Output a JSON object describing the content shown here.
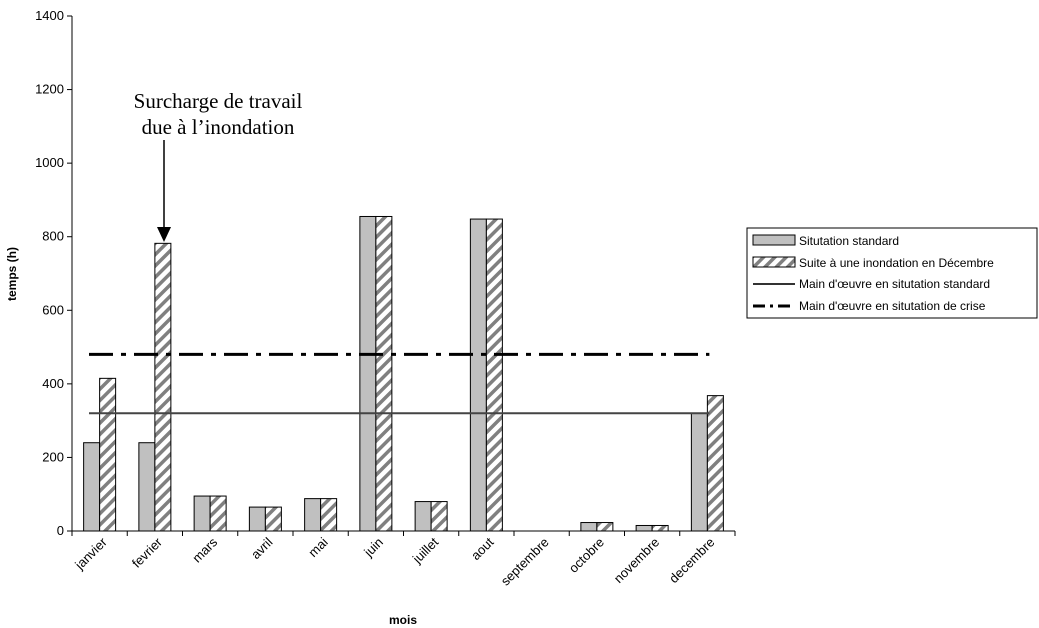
{
  "chart_data": {
    "type": "bar",
    "categories": [
      "janvier",
      "fevrier",
      "mars",
      "avril",
      "mai",
      "juin",
      "juillet",
      "aout",
      "septembre",
      "octobre",
      "novembre",
      "decembre"
    ],
    "series": [
      {
        "name": "Situtation standard",
        "values": [
          240,
          240,
          95,
          65,
          88,
          855,
          80,
          848,
          0,
          23,
          15,
          320
        ],
        "color": "#c0c0c0",
        "pattern": "solid"
      },
      {
        "name": "Suite à une inondation en Décembre",
        "values": [
          415,
          782,
          95,
          65,
          88,
          855,
          80,
          848,
          0,
          23,
          15,
          368
        ],
        "color": "#ffffff",
        "pattern": "diagonal-hatch"
      }
    ],
    "lines": [
      {
        "name": "Main d'œuvre en situtation standard",
        "value": 320,
        "style": "solid"
      },
      {
        "name": "Main d'œuvre en situtation de crise",
        "value": 480,
        "style": "dash-dot"
      }
    ],
    "xlabel": "mois",
    "ylabel": "temps (h)",
    "ylim": [
      0,
      1400
    ],
    "yticks": [
      0,
      200,
      400,
      600,
      800,
      1000,
      1200,
      1400
    ],
    "grid": false,
    "legend_position": "right",
    "annotation": {
      "text_lines": [
        "Surcharge de travail",
        "due à l’inondation"
      ],
      "target_category": "fevrier",
      "target_value": 782
    }
  }
}
